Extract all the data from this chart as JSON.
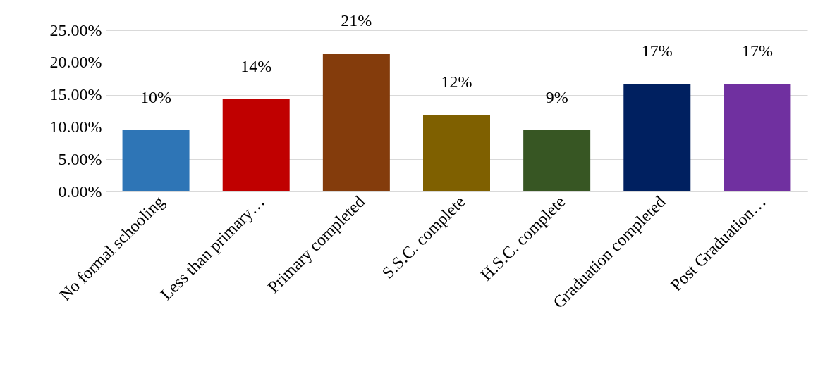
{
  "chart_data": {
    "type": "bar",
    "categories": [
      "No formal schooling",
      "Less than primary…",
      "Primary completed",
      "S.S.C. complete",
      "H.S.C. complete",
      "Graduation completed",
      "Post Graduation…"
    ],
    "values": [
      9.5,
      14.3,
      21.4,
      11.9,
      9.5,
      16.7,
      16.7
    ],
    "colors": [
      "#2e75b6",
      "#c00000",
      "#843c0c",
      "#7f6000",
      "#375623",
      "#002060",
      "#7030a0"
    ],
    "value_labels": [
      "10%",
      "14%",
      "21%",
      "12%",
      "9%",
      "17%",
      "17%"
    ],
    "ylim": [
      0,
      25
    ],
    "yticks": [
      {
        "value": 0,
        "label": "0.00%"
      },
      {
        "value": 5,
        "label": "5.00%"
      },
      {
        "value": 10,
        "label": "10.00%"
      },
      {
        "value": 15,
        "label": "15.00%"
      },
      {
        "value": 20,
        "label": "20.00%"
      },
      {
        "value": 25,
        "label": "25.00%"
      }
    ],
    "grid": "y"
  }
}
